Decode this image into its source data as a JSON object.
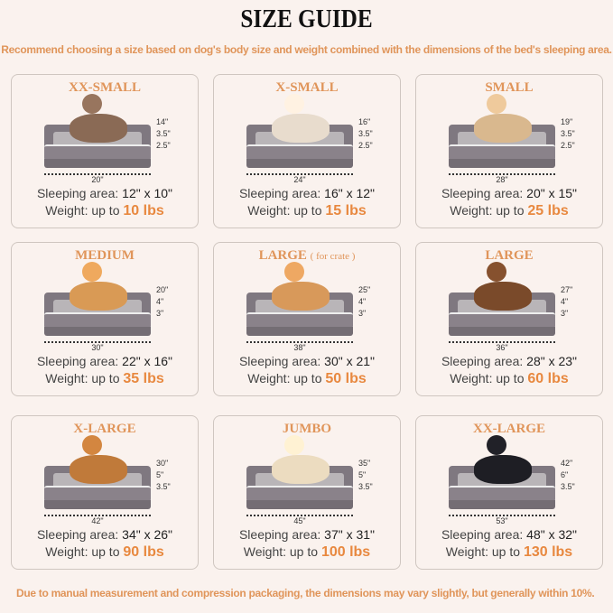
{
  "title": "SIZE GUIDE",
  "subtitle": "Recommend choosing a size based on dog's body size and weight combined with the dimensions of the bed's sleeping area.",
  "footer": "Due to manual measurement and compression packaging, the dimensions may vary slightly, but generally within 10%.",
  "labels": {
    "sleeping_area": "Sleeping area:",
    "weight": "Weight:  up to"
  },
  "accent_color": "#e0955a",
  "cards": [
    {
      "name": "XX-SMALL",
      "note": "",
      "diag": "14\"",
      "top": "3.5\"",
      "bottom": "2.5\"",
      "width": "20\"",
      "sleeping": "12\" x 10\"",
      "weight": "10 lbs",
      "animal": "cat",
      "animal_color": "#8a6a55"
    },
    {
      "name": "X-SMALL",
      "note": "",
      "diag": "16\"",
      "top": "3.5\"",
      "bottom": "2.5\"",
      "width": "24\"",
      "sleeping": "16\" x 12\"",
      "weight": "15 lbs",
      "animal": "dog",
      "animal_color": "#e8dccd"
    },
    {
      "name": "SMALL",
      "note": "",
      "diag": "19\"",
      "top": "3.5\"",
      "bottom": "2.5\"",
      "width": "28\"",
      "sleeping": "20\" x 15\"",
      "weight": "25 lbs",
      "animal": "dog",
      "animal_color": "#d9b88e"
    },
    {
      "name": "MEDIUM",
      "note": "",
      "diag": "20\"",
      "top": "4\"",
      "bottom": "3\"",
      "width": "30\"",
      "sleeping": "22\" x 16\"",
      "weight": "35 lbs",
      "animal": "dog",
      "animal_color": "#d99a55"
    },
    {
      "name": "LARGE",
      "note": "( for crate )",
      "diag": "25\"",
      "top": "4\"",
      "bottom": "3\"",
      "width": "38\"",
      "sleeping": "30\" x 21\"",
      "weight": "50 lbs",
      "animal": "dog",
      "animal_color": "#d8995a"
    },
    {
      "name": "LARGE",
      "note": "",
      "diag": "27\"",
      "top": "4\"",
      "bottom": "3\"",
      "width": "36\"",
      "sleeping": "28\" x 23\"",
      "weight": "60 lbs",
      "animal": "dog",
      "animal_color": "#7a4a2a"
    },
    {
      "name": "X-LARGE",
      "note": "",
      "diag": "30\"",
      "top": "5\"",
      "bottom": "3.5\"",
      "width": "42\"",
      "sleeping": "34\" x 26\"",
      "weight": "90 lbs",
      "animal": "dog",
      "animal_color": "#c07a3a"
    },
    {
      "name": "JUMBO",
      "note": "",
      "diag": "35\"",
      "top": "5\"",
      "bottom": "3.5\"",
      "width": "45\"",
      "sleeping": "37\" x 31\"",
      "weight": "100 lbs",
      "animal": "dog",
      "animal_color": "#ecdcc0"
    },
    {
      "name": "XX-LARGE",
      "note": "",
      "diag": "42\"",
      "top": "6\"",
      "bottom": "3.5\"",
      "width": "53\"",
      "sleeping": "48\" x 32\"",
      "weight": "130 lbs",
      "animal": "dog",
      "animal_color": "#1e1e24"
    }
  ]
}
